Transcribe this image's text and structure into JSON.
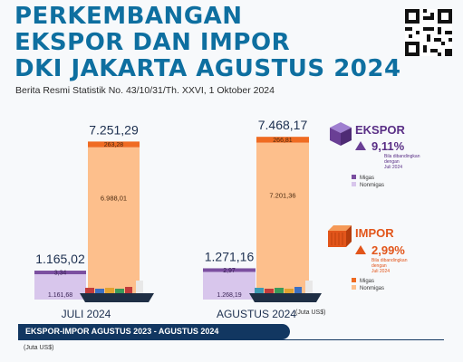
{
  "header": {
    "title_lines": [
      "PERKEMBANGAN",
      "EKSPOR DAN IMPOR",
      "DKI JAKARTA AGUSTUS 2024"
    ],
    "subtitle": "Berita Resmi Statistik No. 43/10/31/Th. XXVI, 1 Oktober 2024"
  },
  "unit_label": "(Juta US$)",
  "bottom": {
    "banner": "EKSPOR-IMPOR AGUSTUS 2023 - AGUSTUS 2024",
    "unit": "(Juta US$)"
  },
  "colors": {
    "title": "#0e6fa0",
    "ekspor_migas": "#7b4fa0",
    "ekspor_nonmigas": "#d8c6ec",
    "impor_migas": "#ef6b22",
    "impor_nonmigas": "#fdbf8c",
    "banner": "#123761"
  },
  "ekspor_panel": {
    "title": "EKSPOR",
    "change": "9,11%",
    "note_lines": [
      "Bila dibandingkan",
      "dengan",
      "Juli 2024"
    ],
    "legend": [
      "Migas",
      "Nonmigas"
    ]
  },
  "impor_panel": {
    "title": "IMPOR",
    "change": "2,99%",
    "note_lines": [
      "Bila dibandingkan",
      "dengan",
      "Juli 2024"
    ],
    "legend": [
      "Migas",
      "Nonmigas"
    ]
  },
  "chart_data": {
    "type": "bar",
    "stacked": true,
    "unit": "Juta US$",
    "categories": [
      "JULI 2024",
      "AGUSTUS 2024"
    ],
    "groups": [
      {
        "category": "JULI 2024",
        "ekspor": {
          "total": "1.165,02",
          "total_value": 1165.02,
          "migas": 3.34,
          "migas_label": "3,34",
          "nonmigas": 1161.68,
          "nonmigas_label": "1.161,68"
        },
        "impor": {
          "total": "7.251,29",
          "total_value": 7251.29,
          "migas": 263.28,
          "migas_label": "263,28",
          "nonmigas": 6988.01,
          "nonmigas_label": "6.988,01"
        }
      },
      {
        "category": "AGUSTUS 2024",
        "ekspor": {
          "total": "1.271,16",
          "total_value": 1271.16,
          "migas": 2.97,
          "migas_label": "2,97",
          "nonmigas": 1268.19,
          "nonmigas_label": "1.268,19"
        },
        "impor": {
          "total": "7.468,17",
          "total_value": 7468.17,
          "migas": 266.81,
          "migas_label": "266,81",
          "nonmigas": 7201.36,
          "nonmigas_label": "7.201,36"
        }
      }
    ]
  }
}
